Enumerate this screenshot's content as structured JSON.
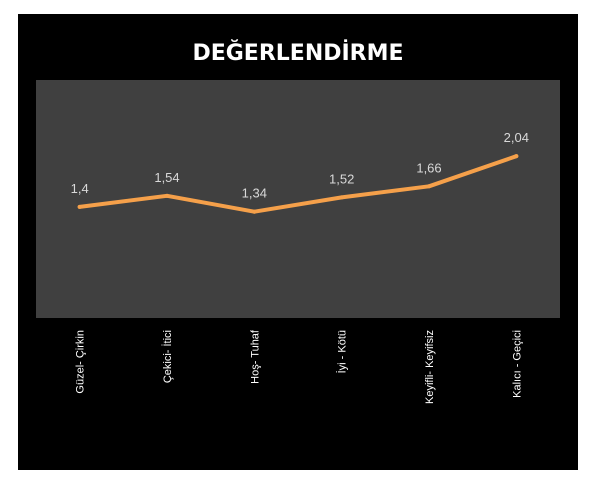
{
  "chart_data": {
    "type": "line",
    "title": "DEĞERLENDİRME",
    "categories": [
      "Güzel- Çirkin",
      "Çekici- İtici",
      "Hoş- Tuhaf",
      "İyi - Kötü",
      "Keyifli- Keyifsiz",
      "Kalıcı - Geçici"
    ],
    "series": [
      {
        "values": [
          1.4,
          1.54,
          1.34,
          1.52,
          1.66,
          2.04
        ],
        "labels": [
          "1,4",
          "1,54",
          "1,34",
          "1,52",
          "1,66",
          "2,04"
        ]
      }
    ],
    "ylim": [
      0,
      3
    ],
    "grid": false,
    "colors": {
      "frame": "#000000",
      "plot_area": "#404040",
      "line": "#f5a04a",
      "label": "#d9d9d9",
      "text": "#ffffff"
    }
  }
}
